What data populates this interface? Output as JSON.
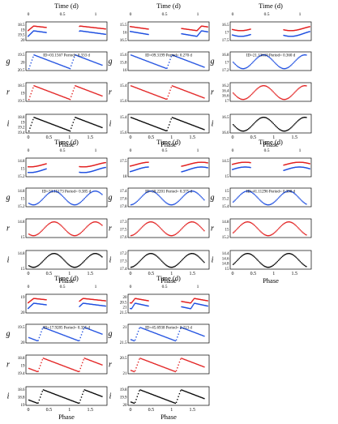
{
  "labels": {
    "time": "Time (d)",
    "phase": "Phase",
    "bands": [
      "g",
      "r",
      "i"
    ]
  },
  "colors": {
    "g": "#1f4fe0",
    "r": "#e21f1f",
    "i": "#000000"
  },
  "chart_data": [
    {
      "type": "scatter",
      "title": "ID=03.1567    Period= 0.333 d",
      "period": 0.333,
      "time_ticks": [
        "0",
        "0.5",
        "1"
      ],
      "phase_ticks": [
        "0",
        "0.5",
        "1",
        "1.5"
      ],
      "ylim": {
        "lc": [
          20,
          18.5
        ],
        "g": [
          20.5,
          19.5
        ],
        "r": [
          19.5,
          18.5
        ],
        "i": [
          19.6,
          18.8
        ]
      },
      "ytick_labels": {
        "lc": [
          "18.5",
          "19",
          "19.5",
          "20"
        ],
        "g": [
          "19.5",
          "20",
          "20.5"
        ],
        "r": [
          "18.5",
          "19",
          "19.5"
        ],
        "i": [
          "18.8",
          "19",
          "19.2",
          "19.4"
        ]
      }
    },
    {
      "type": "scatter",
      "title": "ID=09.3199    Period= 0.270 d",
      "period": 0.27,
      "time_ticks": [
        "0",
        "0.5",
        "1"
      ],
      "phase_ticks": [
        "0",
        "0.5",
        "1",
        "1.5"
      ],
      "ylim": {
        "lc": [
          16.5,
          15.5
        ],
        "g": [
          16,
          15.6
        ],
        "r": [
          15.7,
          15.3
        ],
        "i": [
          15.7,
          15.3
        ]
      },
      "ytick_labels": {
        "lc": [
          "15.5",
          "16",
          "16.5"
        ],
        "g": [
          "15.6",
          "15.8",
          "16"
        ],
        "r": [
          "15.4",
          "15.6"
        ],
        "i": [
          "15.4",
          "15.6"
        ]
      }
    },
    {
      "type": "scatter",
      "title": "ID=21.13610    Period= 0.360 d",
      "period": 0.36,
      "time_ticks": [
        "0",
        "0.5",
        "1"
      ],
      "phase_ticks": [
        "0",
        "0.5",
        "1",
        "1.5"
      ],
      "ylim": {
        "lc": [
          17.8,
          16.5
        ],
        "g": [
          17.2,
          16.6
        ],
        "r": [
          17,
          16.2
        ],
        "i": [
          16.8,
          16.5
        ]
      },
      "ytick_labels": {
        "lc": [
          "16.5",
          "17",
          "17.5"
        ],
        "g": [
          "16.8",
          "17",
          "17.2"
        ],
        "r": [
          "16.2",
          "16.4",
          "16.6",
          "17"
        ],
        "i": [
          "16.5",
          "16.6"
        ]
      }
    },
    {
      "type": "scatter",
      "title": "ID=33.15173    Period= 0.385 d",
      "period": 0.385,
      "time_ticks": [
        "0",
        "0.5",
        "1"
      ],
      "phase_ticks": [
        "0",
        "0.5",
        "1",
        "1.5"
      ],
      "ylim": {
        "lc": [
          15.4,
          14.6
        ],
        "g": [
          15.4,
          14.6
        ],
        "r": [
          15.2,
          14.6
        ],
        "i": [
          15.2,
          14.6
        ]
      },
      "ytick_labels": {
        "lc": [
          "14.8",
          "15",
          "15.2"
        ],
        "g": [
          "14.8",
          "15",
          "15.2"
        ],
        "r": [
          "14.8",
          "15"
        ],
        "i": [
          "14.8",
          "15"
        ]
      }
    },
    {
      "type": "scatter",
      "title": "ID=30.2201    Period= 0.375 d",
      "period": 0.375,
      "time_ticks": [
        "0",
        "0.5",
        "1"
      ],
      "phase_ticks": [
        "0",
        "0.5",
        "1",
        "1.5"
      ],
      "ylim": {
        "lc": [
          18,
          17.2
        ],
        "g": [
          17.8,
          17.4
        ],
        "r": [
          17.8,
          17.3
        ],
        "i": [
          17.6,
          17.1
        ]
      },
      "ytick_labels": {
        "lc": [
          "17.5",
          "18"
        ],
        "g": [
          "17.4",
          "17.6",
          "17.8"
        ],
        "r": [
          "17.3",
          "17.5",
          "17.6"
        ],
        "i": [
          "17.2",
          "17.3",
          "17.4"
        ]
      }
    },
    {
      "type": "scatter",
      "title": "ID=41.11296    Period= 0.390 d",
      "period": 0.39,
      "time_ticks": [
        "0",
        "0.5",
        "1"
      ],
      "phase_ticks": [
        "0",
        "0.5",
        "1",
        "1.5"
      ],
      "ylim": {
        "lc": [
          15.2,
          14.3
        ],
        "g": [
          15.4,
          14.9
        ],
        "r": [
          15.2,
          14.8
        ],
        "i": [
          15.1,
          14.3
        ]
      },
      "ytick_labels": {
        "lc": [
          "14.5",
          "15"
        ],
        "g": [
          "15",
          "15.2",
          "15.4"
        ],
        "r": [
          "14.8",
          "15",
          "15.2"
        ],
        "i": [
          "14.4",
          "14.6",
          "14.8",
          "15"
        ]
      }
    },
    {
      "type": "scatter",
      "title": "ID=17.9285    Period= 0.355 d",
      "period": 0.355,
      "time_ticks": [
        "0",
        "0.5",
        "1"
      ],
      "phase_ticks": [
        "0",
        "0.5",
        "1",
        "1.5"
      ],
      "ylim": {
        "lc": [
          20,
          18.5
        ],
        "g": [
          20,
          19.5
        ],
        "r": [
          19.4,
          18.6
        ],
        "i": [
          19.2,
          18.6
        ]
      },
      "ytick_labels": {
        "lc": [
          "19",
          "20"
        ],
        "g": [
          "19.5",
          "20"
        ],
        "r": [
          "18.8",
          "19",
          "19.4"
        ],
        "i": [
          "18.6",
          "18.8",
          "19"
        ]
      }
    },
    {
      "type": "scatter",
      "title": "ID=45.6938    Period= 0.213 d",
      "period": 0.213,
      "time_ticks": [
        "0",
        "0.5",
        "1"
      ],
      "phase_ticks": [
        "0",
        "0.5",
        "1",
        "1.5"
      ],
      "ylim": {
        "lc": [
          21.5,
          20
        ],
        "g": [
          21.5,
          21
        ],
        "r": [
          21,
          20.5
        ],
        "i": [
          20,
          19.8
        ]
      },
      "ytick_labels": {
        "lc": [
          "20",
          "20.5",
          "21",
          "21.5"
        ],
        "g": [
          "21",
          "21.5"
        ],
        "r": [
          "20.5",
          "21"
        ],
        "i": [
          "19.8",
          "19.9",
          "20"
        ]
      }
    }
  ]
}
